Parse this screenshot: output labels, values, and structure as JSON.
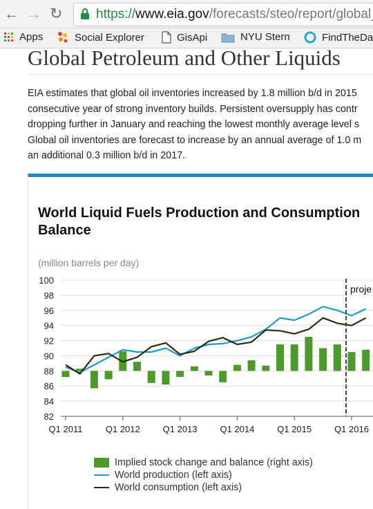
{
  "browser": {
    "url_scheme": "https://",
    "url_host": "www.eia.gov",
    "url_path": "/forecasts/steo/report/global_",
    "bookmarks": [
      {
        "label": "Apps",
        "icon": "apps-grid-icon"
      },
      {
        "label": "Social Explorer",
        "icon": "social-explorer-icon"
      },
      {
        "label": "GisApi",
        "icon": "page-icon"
      },
      {
        "label": "NYU Stern",
        "icon": "folder-icon"
      },
      {
        "label": "FindTheDat",
        "icon": "findthedata-icon"
      }
    ]
  },
  "page": {
    "title": "Global Petroleum and Other Liquids",
    "paragraph_lines": [
      "EIA estimates that global oil inventories increased by 1.8 million b/d in 2015",
      "consecutive year of strong inventory builds. Persistent oversupply has contr",
      "dropping further in January and reaching the lowest monthly average level s",
      "Global oil inventories are forecast to increase by an annual average of 1.0 m",
      "an additional 0.3 million b/d in 2017."
    ]
  },
  "chart": {
    "title": "World Liquid Fuels Production and Consumption Balance",
    "units_label": "(million barrels per day)",
    "projection_label": "proje",
    "legend": [
      "Implied stock change and balance (right axis)",
      "World production (left axis)",
      "World consumption (left axis)"
    ]
  },
  "colors": {
    "accent_bar": "#1b8bc6",
    "stock_bars": "#4c9a2a",
    "production_line": "#1e9ad1",
    "consumption_line": "#2b2b10",
    "url_https": "#1e8e3e"
  },
  "chart_data": {
    "type": "bar",
    "title": "World Liquid Fuels Production and Consumption Balance",
    "ylabel": "(million barrels per day)",
    "ylim": [
      82,
      100
    ],
    "yticks": [
      82,
      84,
      86,
      88,
      90,
      92,
      94,
      96,
      98,
      100
    ],
    "xticks": [
      "Q1 2011",
      "Q1 2012",
      "Q1 2013",
      "Q1 2014",
      "Q1 2015",
      "Q1 2016"
    ],
    "x": [
      "2011Q1",
      "2011Q2",
      "2011Q3",
      "2011Q4",
      "2012Q1",
      "2012Q2",
      "2012Q3",
      "2012Q4",
      "2013Q1",
      "2013Q2",
      "2013Q3",
      "2013Q4",
      "2014Q1",
      "2014Q2",
      "2014Q3",
      "2014Q4",
      "2015Q1",
      "2015Q2",
      "2015Q3",
      "2015Q4",
      "2016Q1",
      "2016Q2"
    ],
    "projection_start": "2016Q1",
    "series": [
      {
        "name": "Implied stock change and balance (right axis)",
        "type": "bar",
        "values": [
          -0.8,
          0.3,
          -2.3,
          -1.1,
          2.6,
          1.2,
          -1.6,
          -1.8,
          -0.8,
          0.6,
          -0.6,
          -1.5,
          0.8,
          1.4,
          0.7,
          3.5,
          3.5,
          4.5,
          3.0,
          3.5,
          2.5,
          2.8
        ]
      },
      {
        "name": "World production (left axis)",
        "type": "line",
        "values": [
          88.5,
          87.8,
          88.8,
          89.8,
          90.8,
          90.5,
          90.5,
          91.0,
          90.0,
          91.0,
          91.5,
          91.6,
          92.0,
          92.5,
          93.5,
          95.0,
          94.7,
          95.5,
          96.5,
          96.0,
          95.3,
          96.2
        ]
      },
      {
        "name": "World consumption (left axis)",
        "type": "line",
        "values": [
          88.8,
          87.6,
          90.0,
          90.3,
          89.2,
          89.8,
          91.2,
          91.7,
          90.2,
          90.6,
          91.9,
          92.4,
          91.5,
          91.8,
          93.4,
          93.3,
          92.9,
          93.5,
          95.0,
          94.3,
          94.0,
          95.0
        ]
      }
    ]
  }
}
